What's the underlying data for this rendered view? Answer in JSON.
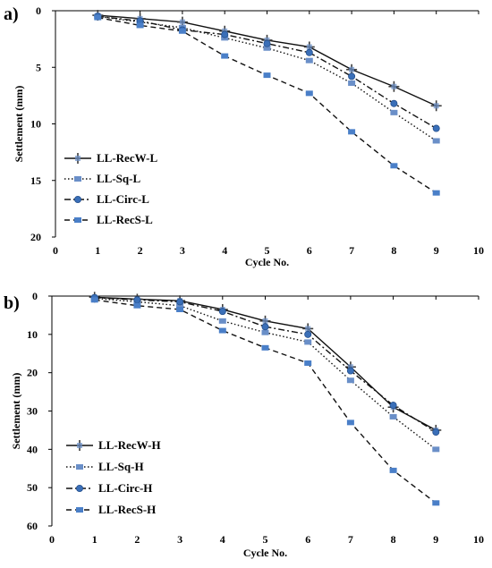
{
  "chart_data": [
    {
      "type": "line",
      "panel_label": "a)",
      "xlabel": "Cycle No.",
      "ylabel": "Settlement (mm)",
      "xlim": [
        0,
        10
      ],
      "ylim": [
        0,
        20
      ],
      "y_inverted": true,
      "x_ticks": [
        0,
        1,
        2,
        3,
        4,
        5,
        6,
        7,
        8,
        9,
        10
      ],
      "y_ticks": [
        0,
        5,
        10,
        15,
        20
      ],
      "grid": false,
      "legend_placement": "bottom-left",
      "x": [
        1,
        2,
        3,
        4,
        5,
        6,
        7,
        8,
        9
      ],
      "series": [
        {
          "name": "LL-RecW-L",
          "style": "solid",
          "marker": "plus",
          "color": "#3a3a3a",
          "values": [
            0.4,
            0.7,
            1.0,
            1.8,
            2.6,
            3.2,
            5.2,
            6.7,
            8.4
          ]
        },
        {
          "name": "LL-Sq-L",
          "style": "dotted",
          "marker": "square",
          "color": "#6a8fc8",
          "values": [
            0.5,
            1.0,
            1.5,
            2.4,
            3.3,
            4.4,
            6.4,
            9.0,
            11.5
          ]
        },
        {
          "name": "LL-Circ-L",
          "style": "dashdot",
          "marker": "circle",
          "color": "#3a6fb8",
          "values": [
            0.5,
            0.9,
            1.7,
            2.1,
            2.9,
            3.7,
            5.8,
            8.2,
            10.4
          ]
        },
        {
          "name": "LL-RecS-L",
          "style": "dashed",
          "marker": "square",
          "color": "#4a7fc8",
          "values": [
            0.6,
            1.3,
            1.8,
            4.0,
            5.7,
            7.3,
            10.7,
            13.7,
            16.1
          ]
        }
      ]
    },
    {
      "type": "line",
      "panel_label": "b)",
      "xlabel": "Cycle No.",
      "ylabel": "Settlement (mm)",
      "xlim": [
        0,
        10
      ],
      "ylim": [
        0,
        60
      ],
      "y_inverted": true,
      "x_ticks": [
        0,
        1,
        2,
        3,
        4,
        5,
        6,
        7,
        8,
        9,
        10
      ],
      "y_ticks": [
        0,
        10,
        20,
        30,
        40,
        50,
        60
      ],
      "grid": false,
      "legend_placement": "bottom-left",
      "x": [
        1,
        2,
        3,
        4,
        5,
        6,
        7,
        8,
        9
      ],
      "series": [
        {
          "name": "LL-RecW-H",
          "style": "solid",
          "marker": "plus",
          "color": "#3a3a3a",
          "values": [
            0.3,
            0.8,
            1.2,
            3.5,
            6.5,
            8.5,
            18.5,
            29.0,
            35.0
          ]
        },
        {
          "name": "LL-Sq-H",
          "style": "dotted",
          "marker": "square",
          "color": "#6a8fc8",
          "values": [
            0.6,
            1.5,
            2.5,
            6.5,
            9.5,
            12.0,
            22.0,
            31.5,
            40.0
          ]
        },
        {
          "name": "LL-Circ-H",
          "style": "dashdot",
          "marker": "circle",
          "color": "#3a6fb8",
          "values": [
            0.4,
            1.0,
            1.5,
            4.0,
            8.0,
            10.0,
            19.5,
            28.5,
            35.5
          ]
        },
        {
          "name": "LL-RecS-H",
          "style": "dashed",
          "marker": "square",
          "color": "#4a7fc8",
          "values": [
            1.0,
            2.5,
            3.5,
            9.0,
            13.5,
            17.5,
            33.0,
            45.5,
            54.0
          ]
        }
      ]
    }
  ]
}
